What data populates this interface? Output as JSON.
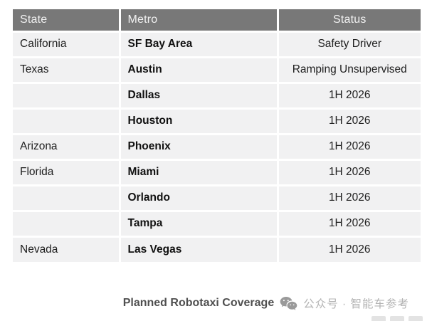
{
  "chart_data": {
    "type": "table",
    "title": "Planned Robotaxi Coverage",
    "columns": [
      "State",
      "Metro",
      "Status"
    ],
    "rows": [
      [
        "California",
        "SF Bay Area",
        "Safety Driver"
      ],
      [
        "Texas",
        "Austin",
        "Ramping Unsupervised"
      ],
      [
        "",
        "Dallas",
        "1H 2026"
      ],
      [
        "",
        "Houston",
        "1H 2026"
      ],
      [
        "Arizona",
        "Phoenix",
        "1H 2026"
      ],
      [
        "Florida",
        "Miami",
        "1H 2026"
      ],
      [
        "",
        "Orlando",
        "1H 2026"
      ],
      [
        "",
        "Tampa",
        "1H 2026"
      ],
      [
        "Nevada",
        "Las Vegas",
        "1H 2026"
      ]
    ],
    "layout_hints": {
      "column_alignments": [
        "left",
        "left",
        "center"
      ],
      "metro_column_bold": true,
      "gridlines": "white-separators",
      "header_style": "gray-bar-white-text"
    }
  },
  "caption": {
    "title": "Planned Robotaxi Coverage",
    "icon": "wechat-icon",
    "account": "公众号 · 智能车参考"
  },
  "colors": {
    "header_bg": "#787878",
    "header_text": "#f2f2f2",
    "row_bg": "#f1f1f2",
    "grid": "#ffffff",
    "cell_text": "#202020",
    "caption_title": "#4f4f4f",
    "caption_account": "#b3b3b3",
    "icon": "#9a9a9a"
  }
}
